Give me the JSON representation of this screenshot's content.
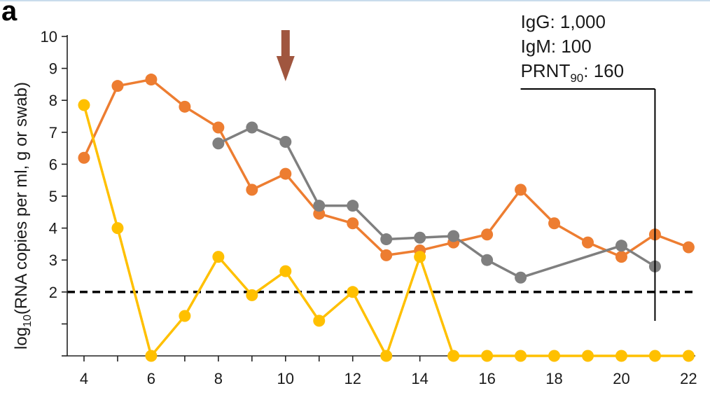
{
  "panel_label": "a",
  "chart_data": {
    "type": "line",
    "ylabel_prefix": "log",
    "ylabel_sub": "10",
    "ylabel_rest": "(RNA copies per ml, g or swab)",
    "xlabel": "",
    "xlim": [
      3.5,
      22.2
    ],
    "ylim": [
      0,
      10
    ],
    "x_ticks": [
      4,
      6,
      8,
      10,
      12,
      14,
      16,
      18,
      20,
      22
    ],
    "y_ticks": [
      1,
      2,
      3,
      4,
      5,
      6,
      7,
      8,
      9,
      10
    ],
    "y_tick_labels": [
      "",
      "2",
      "3",
      "4",
      "5",
      "6",
      "7",
      "8",
      "9",
      "10"
    ],
    "threshold": 2,
    "arrow_day": 10,
    "arrow_color": "#a0563f",
    "antibody_box": {
      "lines": [
        "IgG: 1,000",
        "IgM: 100"
      ],
      "prnt_prefix": "PRNT",
      "prnt_sub": "90",
      "prnt_suffix": ": 160",
      "x_start": 17,
      "x_end": 21
    },
    "series": [
      {
        "color": "#ed7d31",
        "x": [
          4,
          5,
          6,
          7,
          8,
          9,
          10,
          11,
          12,
          13,
          14,
          15,
          16,
          17,
          18,
          19,
          20,
          21,
          22
        ],
        "y": [
          6.2,
          8.45,
          8.65,
          7.8,
          7.15,
          5.2,
          5.7,
          4.45,
          4.15,
          3.15,
          3.3,
          3.55,
          3.8,
          5.2,
          4.15,
          3.55,
          3.1,
          3.8,
          3.4
        ]
      },
      {
        "color": "#7f7f7f",
        "x": [
          8,
          9,
          10,
          11,
          12,
          13,
          14,
          15,
          16,
          17,
          20,
          21
        ],
        "y": [
          6.65,
          7.15,
          6.7,
          4.7,
          4.7,
          3.65,
          3.7,
          3.75,
          3.0,
          2.45,
          3.45,
          2.8
        ]
      },
      {
        "color": "#ffc000",
        "x": [
          4,
          5,
          6,
          7,
          8,
          9,
          10,
          11,
          12,
          13,
          14,
          15,
          16,
          17,
          18,
          19,
          20,
          21,
          22
        ],
        "y": [
          7.85,
          4.0,
          0,
          1.25,
          3.1,
          1.9,
          2.65,
          1.1,
          2.0,
          0,
          3.1,
          0,
          0,
          0,
          0,
          0,
          0,
          0,
          0
        ]
      }
    ]
  }
}
